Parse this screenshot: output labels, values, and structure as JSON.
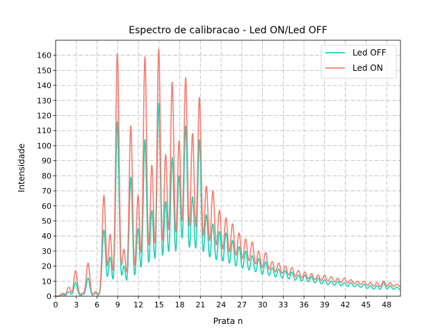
{
  "chart_data": {
    "type": "line",
    "title": "Espectro de calibracao - Led ON/Led OFF",
    "xlabel": "Prata n",
    "ylabel": "Intensidade",
    "xlim": [
      0,
      50
    ],
    "ylim": [
      0,
      170
    ],
    "xticks": [
      0,
      3,
      6,
      9,
      12,
      15,
      18,
      21,
      24,
      27,
      30,
      33,
      36,
      39,
      42,
      45,
      48
    ],
    "yticks": [
      0,
      10,
      20,
      30,
      40,
      50,
      60,
      70,
      80,
      90,
      100,
      110,
      120,
      130,
      140,
      150,
      160
    ],
    "grid": true,
    "legend_position": "top-right",
    "peak_width": 0.25,
    "series": [
      {
        "name": "Led OFF",
        "color": "#17d4b4",
        "peaks": [
          {
            "x": 1.0,
            "y": 1
          },
          {
            "x": 1.9,
            "y": 3
          },
          {
            "x": 2.9,
            "y": 9
          },
          {
            "x": 3.9,
            "y": 1
          },
          {
            "x": 4.7,
            "y": 12
          },
          {
            "x": 5.8,
            "y": 2
          },
          {
            "x": 7.0,
            "y": 44
          },
          {
            "x": 7.9,
            "y": 26
          },
          {
            "x": 8.95,
            "y": 116
          },
          {
            "x": 9.9,
            "y": 20
          },
          {
            "x": 10.9,
            "y": 79
          },
          {
            "x": 11.95,
            "y": 45
          },
          {
            "x": 12.95,
            "y": 104
          },
          {
            "x": 13.95,
            "y": 57
          },
          {
            "x": 14.95,
            "y": 128
          },
          {
            "x": 15.95,
            "y": 63
          },
          {
            "x": 16.9,
            "y": 92
          },
          {
            "x": 17.9,
            "y": 80
          },
          {
            "x": 18.85,
            "y": 113
          },
          {
            "x": 19.85,
            "y": 66
          },
          {
            "x": 20.85,
            "y": 104
          },
          {
            "x": 21.85,
            "y": 54
          },
          {
            "x": 22.8,
            "y": 48
          },
          {
            "x": 23.75,
            "y": 43
          },
          {
            "x": 24.7,
            "y": 42
          },
          {
            "x": 25.65,
            "y": 37
          },
          {
            "x": 26.6,
            "y": 33
          },
          {
            "x": 27.55,
            "y": 30
          },
          {
            "x": 28.5,
            "y": 27
          },
          {
            "x": 29.45,
            "y": 25
          },
          {
            "x": 30.45,
            "y": 23
          },
          {
            "x": 31.4,
            "y": 19
          },
          {
            "x": 32.35,
            "y": 18
          },
          {
            "x": 33.3,
            "y": 17
          },
          {
            "x": 34.25,
            "y": 16
          },
          {
            "x": 35.2,
            "y": 14
          },
          {
            "x": 36.15,
            "y": 14
          },
          {
            "x": 37.1,
            "y": 13
          },
          {
            "x": 38.05,
            "y": 12
          },
          {
            "x": 39.0,
            "y": 11
          },
          {
            "x": 39.95,
            "y": 10
          },
          {
            "x": 40.9,
            "y": 10
          },
          {
            "x": 41.85,
            "y": 9
          },
          {
            "x": 42.8,
            "y": 9
          },
          {
            "x": 43.75,
            "y": 8
          },
          {
            "x": 44.7,
            "y": 8
          },
          {
            "x": 45.65,
            "y": 7
          },
          {
            "x": 46.6,
            "y": 7
          },
          {
            "x": 47.55,
            "y": 9
          },
          {
            "x": 48.5,
            "y": 7
          },
          {
            "x": 49.45,
            "y": 6
          }
        ],
        "baseline": [
          {
            "x": 0,
            "y": 0
          },
          {
            "x": 7.5,
            "y": 0
          },
          {
            "x": 12.5,
            "y": 2
          },
          {
            "x": 15.5,
            "y": 5
          },
          {
            "x": 17.5,
            "y": 10
          },
          {
            "x": 19.3,
            "y": 13
          },
          {
            "x": 21.3,
            "y": 14
          },
          {
            "x": 24.3,
            "y": 14
          },
          {
            "x": 28,
            "y": 12
          },
          {
            "x": 32,
            "y": 10
          },
          {
            "x": 36,
            "y": 8
          },
          {
            "x": 40,
            "y": 6
          },
          {
            "x": 44,
            "y": 5
          },
          {
            "x": 47,
            "y": 3
          },
          {
            "x": 50,
            "y": 4
          }
        ]
      },
      {
        "name": "Led ON",
        "color": "#fa7a6e",
        "peaks": [
          {
            "x": 1.0,
            "y": 2
          },
          {
            "x": 1.9,
            "y": 6
          },
          {
            "x": 2.9,
            "y": 17
          },
          {
            "x": 3.9,
            "y": 2
          },
          {
            "x": 4.7,
            "y": 22
          },
          {
            "x": 5.8,
            "y": 3
          },
          {
            "x": 7.0,
            "y": 67
          },
          {
            "x": 7.9,
            "y": 41
          },
          {
            "x": 8.95,
            "y": 161
          },
          {
            "x": 9.9,
            "y": 31
          },
          {
            "x": 10.9,
            "y": 113
          },
          {
            "x": 11.95,
            "y": 67
          },
          {
            "x": 12.95,
            "y": 159
          },
          {
            "x": 13.95,
            "y": 87
          },
          {
            "x": 14.95,
            "y": 164
          },
          {
            "x": 15.95,
            "y": 94
          },
          {
            "x": 16.9,
            "y": 142
          },
          {
            "x": 17.9,
            "y": 103
          },
          {
            "x": 18.85,
            "y": 145
          },
          {
            "x": 19.85,
            "y": 108
          },
          {
            "x": 20.85,
            "y": 132
          },
          {
            "x": 21.85,
            "y": 73
          },
          {
            "x": 22.8,
            "y": 70
          },
          {
            "x": 23.75,
            "y": 57
          },
          {
            "x": 24.7,
            "y": 52
          },
          {
            "x": 25.65,
            "y": 48
          },
          {
            "x": 26.6,
            "y": 42
          },
          {
            "x": 27.55,
            "y": 38
          },
          {
            "x": 28.5,
            "y": 36
          },
          {
            "x": 29.45,
            "y": 30
          },
          {
            "x": 30.45,
            "y": 29
          },
          {
            "x": 31.4,
            "y": 23
          },
          {
            "x": 32.35,
            "y": 22
          },
          {
            "x": 33.3,
            "y": 20
          },
          {
            "x": 34.25,
            "y": 19
          },
          {
            "x": 35.2,
            "y": 17
          },
          {
            "x": 36.15,
            "y": 16
          },
          {
            "x": 37.1,
            "y": 15
          },
          {
            "x": 38.05,
            "y": 14
          },
          {
            "x": 39.0,
            "y": 14
          },
          {
            "x": 39.95,
            "y": 13
          },
          {
            "x": 40.9,
            "y": 12
          },
          {
            "x": 41.85,
            "y": 12
          },
          {
            "x": 42.8,
            "y": 11
          },
          {
            "x": 43.75,
            "y": 10
          },
          {
            "x": 44.7,
            "y": 10
          },
          {
            "x": 45.65,
            "y": 9
          },
          {
            "x": 46.6,
            "y": 9
          },
          {
            "x": 47.55,
            "y": 10
          },
          {
            "x": 48.5,
            "y": 9
          },
          {
            "x": 49.45,
            "y": 8
          }
        ],
        "baseline": [
          {
            "x": 0,
            "y": 0
          },
          {
            "x": 7.5,
            "y": 0
          },
          {
            "x": 12.5,
            "y": 3
          },
          {
            "x": 15.5,
            "y": 6
          },
          {
            "x": 17.5,
            "y": 14
          },
          {
            "x": 19.3,
            "y": 18
          },
          {
            "x": 21.3,
            "y": 20
          },
          {
            "x": 24.3,
            "y": 20
          },
          {
            "x": 28,
            "y": 17
          },
          {
            "x": 32,
            "y": 13
          },
          {
            "x": 36,
            "y": 10
          },
          {
            "x": 40,
            "y": 8
          },
          {
            "x": 44,
            "y": 7
          },
          {
            "x": 47,
            "y": 5
          },
          {
            "x": 50,
            "y": 6
          }
        ]
      }
    ]
  }
}
